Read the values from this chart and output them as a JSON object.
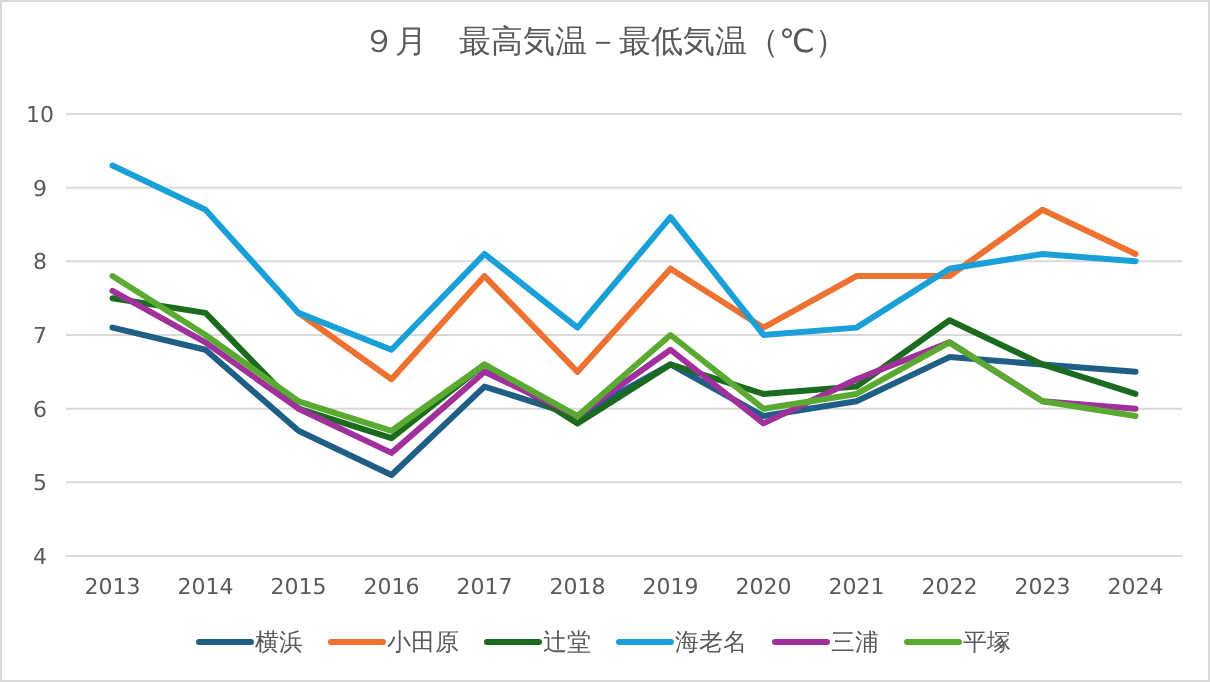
{
  "chart_data": {
    "type": "line",
    "title": "９月　最高気温－最低気温（℃）",
    "categories": [
      "2013",
      "2014",
      "2015",
      "2016",
      "2017",
      "2018",
      "2019",
      "2020",
      "2021",
      "2022",
      "2023",
      "2024"
    ],
    "ylim": [
      4,
      10
    ],
    "yticks": [
      4,
      5,
      6,
      7,
      8,
      9,
      10
    ],
    "grid": "y",
    "legend": "bottom",
    "marker": "none",
    "line_style": "solid",
    "series": [
      {
        "name": "横浜",
        "color": "#1f5f85",
        "values": [
          7.1,
          6.8,
          5.7,
          5.1,
          6.3,
          5.9,
          6.6,
          5.9,
          6.1,
          6.7,
          6.6,
          6.5
        ]
      },
      {
        "name": "小田原",
        "color": "#ed7130",
        "values": [
          null,
          null,
          7.3,
          6.4,
          7.8,
          6.5,
          7.9,
          7.1,
          7.8,
          7.8,
          8.7,
          8.1
        ]
      },
      {
        "name": "辻堂",
        "color": "#1b6b1f",
        "values": [
          7.5,
          7.3,
          6.0,
          5.6,
          6.6,
          5.8,
          6.6,
          6.2,
          6.3,
          7.2,
          6.6,
          6.2
        ]
      },
      {
        "name": "海老名",
        "color": "#1aa0d8",
        "values": [
          9.3,
          8.7,
          7.3,
          6.8,
          8.1,
          7.1,
          8.6,
          7.0,
          7.1,
          7.9,
          8.1,
          8.0
        ]
      },
      {
        "name": "三浦",
        "color": "#a0309c",
        "values": [
          7.6,
          6.9,
          6.0,
          5.4,
          6.5,
          5.9,
          6.8,
          5.8,
          6.4,
          6.9,
          6.1,
          6.0
        ]
      },
      {
        "name": "平塚",
        "color": "#5aaa32",
        "values": [
          7.8,
          7.0,
          6.1,
          5.7,
          6.6,
          5.9,
          7.0,
          6.0,
          6.2,
          6.9,
          6.1,
          5.9
        ]
      }
    ]
  }
}
